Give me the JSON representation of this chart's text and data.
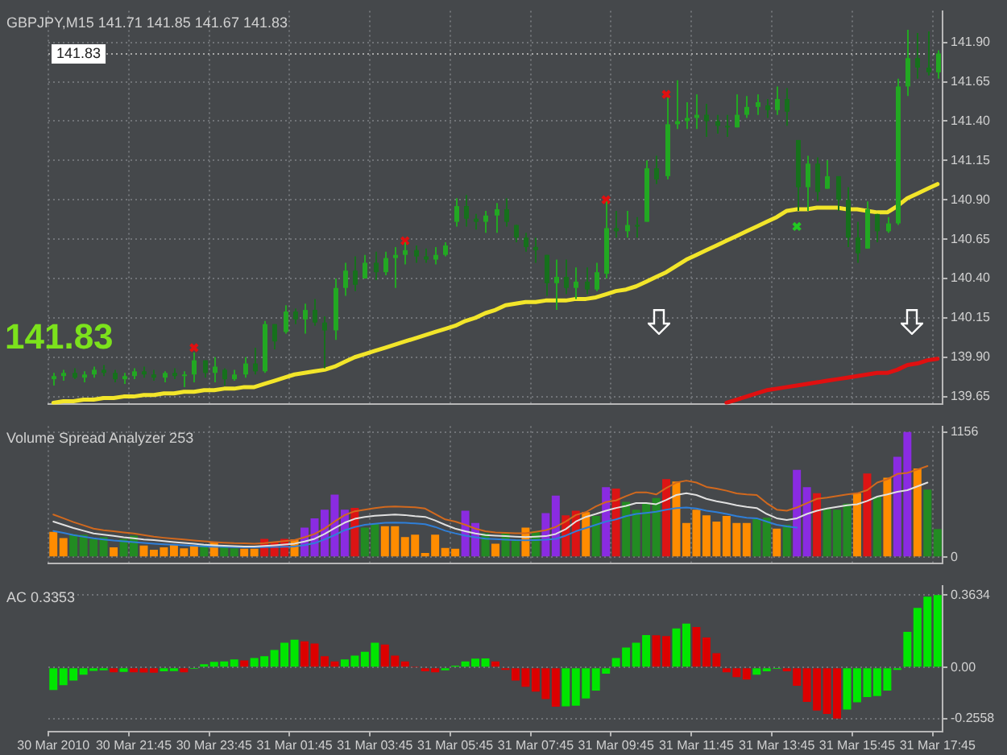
{
  "chart_data": [
    {
      "type": "candlestick",
      "title": "GBPJPY,M15 141.71 141.85 141.67 141.83",
      "annotations": [
        "141.83"
      ],
      "colors": [
        "#22a822",
        "#22a822",
        "#16701c",
        "#22a822",
        "#22a822",
        "#16701c",
        "#16701c",
        "#22a822",
        "#22a822",
        "#16701c",
        "#16701c",
        "#22a822",
        "#16701c",
        "#22a822",
        "#22a822",
        "#16701c",
        "#22a822",
        "#16701c",
        "#22a822",
        "#22a822",
        "#16701c",
        "#22a822",
        "#16701c",
        "#22a822",
        "#16701c",
        "#22a822",
        "#16701c",
        "#16701c",
        "#22a822",
        "#22a822",
        "#16701c",
        "#22a822",
        "#16701c",
        "#22a822",
        "#22a822",
        "#22a822",
        "#16701c",
        "#16701c",
        "#22a822",
        "#22a822",
        "#22a822",
        "#16701c",
        "#16701c",
        "#22a822",
        "#22a822",
        "#16701c",
        "#16701c",
        "#16701c",
        "#16701c",
        "#16701c",
        "#22a822",
        "#16701c",
        "#22a822",
        "#16701c",
        "#22a822",
        "#22a822",
        "#16701c",
        "#22a822",
        "#16701c",
        "#22a822",
        "#16701c",
        "#22a822",
        "#22a822",
        "#22a822",
        "#22a822",
        "#16701c",
        "#16701c",
        "#16701c",
        "#22a822",
        "#22a822",
        "#22a822",
        "#16701c",
        "#22a822",
        "#16701c",
        "#16701c",
        "#22a822",
        "#16701c",
        "#22a822",
        "#16701c",
        "#16701c",
        "#16701c",
        "#22a822",
        "#16701c",
        "#22a822",
        "#22a822",
        "#22a822",
        "#16701c",
        "#16701c",
        "#22a822"
      ],
      "ohlc": [
        [
          139.76,
          139.8,
          139.72,
          139.78
        ],
        [
          139.78,
          139.82,
          139.75,
          139.8
        ],
        [
          139.8,
          139.83,
          139.76,
          139.77
        ],
        [
          139.77,
          139.81,
          139.74,
          139.79
        ],
        [
          139.79,
          139.84,
          139.77,
          139.82
        ],
        [
          139.82,
          139.85,
          139.78,
          139.8
        ],
        [
          139.8,
          139.82,
          139.74,
          139.76
        ],
        [
          139.76,
          139.8,
          139.73,
          139.78
        ],
        [
          139.78,
          139.83,
          139.76,
          139.81
        ],
        [
          139.81,
          139.84,
          139.77,
          139.79
        ],
        [
          139.79,
          139.82,
          139.75,
          139.77
        ],
        [
          139.77,
          139.81,
          139.74,
          139.8
        ],
        [
          139.8,
          139.83,
          139.76,
          139.78
        ],
        [
          139.78,
          139.81,
          139.71,
          139.79
        ],
        [
          139.79,
          139.93,
          139.74,
          139.88
        ],
        [
          139.88,
          139.88,
          139.77,
          139.8
        ],
        [
          139.8,
          139.9,
          139.74,
          139.84
        ],
        [
          139.82,
          139.83,
          139.72,
          139.76
        ],
        [
          139.76,
          139.82,
          139.75,
          139.79
        ],
        [
          139.79,
          139.9,
          139.77,
          139.86
        ],
        [
          139.86,
          139.96,
          139.79,
          139.81
        ],
        [
          139.81,
          140.13,
          139.8,
          140.11
        ],
        [
          140.11,
          140.11,
          139.95,
          140.0
        ],
        [
          140.06,
          140.23,
          140.05,
          140.19
        ],
        [
          140.19,
          140.21,
          140.11,
          140.14
        ],
        [
          140.14,
          140.24,
          140.05,
          140.2
        ],
        [
          140.2,
          140.27,
          140.1,
          140.12
        ],
        [
          140.12,
          140.16,
          139.83,
          140.07
        ],
        [
          140.07,
          140.4,
          140.01,
          140.34
        ],
        [
          140.34,
          140.5,
          140.29,
          140.45
        ],
        [
          140.45,
          140.54,
          140.32,
          140.36
        ],
        [
          140.4,
          140.55,
          140.4,
          140.5
        ],
        [
          140.5,
          140.57,
          140.39,
          140.44
        ],
        [
          140.44,
          140.57,
          140.42,
          140.53
        ],
        [
          140.53,
          140.6,
          140.34,
          140.55
        ],
        [
          140.55,
          140.63,
          140.49,
          140.58
        ],
        [
          140.58,
          140.61,
          140.5,
          140.54
        ],
        [
          140.54,
          140.59,
          140.5,
          140.52
        ],
        [
          140.52,
          140.6,
          140.49,
          140.55
        ],
        [
          140.55,
          140.63,
          140.54,
          140.61
        ],
        [
          140.76,
          140.91,
          140.73,
          140.86
        ],
        [
          140.86,
          140.93,
          140.73,
          140.78
        ],
        [
          140.78,
          140.81,
          140.71,
          140.76
        ],
        [
          140.76,
          140.83,
          140.69,
          140.8
        ],
        [
          140.8,
          140.88,
          140.69,
          140.84
        ],
        [
          140.84,
          140.91,
          140.73,
          140.76
        ],
        [
          140.74,
          140.74,
          140.63,
          140.66
        ],
        [
          140.66,
          140.69,
          140.57,
          140.6
        ],
        [
          140.6,
          140.66,
          140.5,
          140.58
        ],
        [
          140.55,
          140.55,
          140.29,
          140.37
        ],
        [
          140.37,
          140.52,
          140.2,
          140.41
        ],
        [
          140.41,
          140.52,
          140.3,
          140.34
        ],
        [
          140.34,
          140.47,
          140.27,
          140.38
        ],
        [
          140.38,
          140.47,
          140.3,
          140.33
        ],
        [
          140.33,
          140.5,
          140.32,
          140.44
        ],
        [
          140.43,
          140.89,
          140.4,
          140.72
        ],
        [
          140.72,
          140.83,
          140.66,
          140.7
        ],
        [
          140.7,
          140.83,
          140.66,
          140.74
        ],
        [
          140.74,
          140.79,
          140.66,
          140.73
        ],
        [
          140.76,
          141.15,
          140.76,
          141.1
        ],
        [
          141.1,
          141.18,
          141.0,
          141.03
        ],
        [
          141.05,
          141.55,
          141.03,
          141.38
        ],
        [
          141.38,
          141.66,
          141.35,
          141.4
        ],
        [
          141.4,
          141.52,
          141.35,
          141.42
        ],
        [
          141.42,
          141.57,
          141.35,
          141.44
        ],
        [
          141.44,
          141.51,
          141.3,
          141.4
        ],
        [
          141.4,
          141.44,
          141.32,
          141.37
        ],
        [
          141.37,
          141.44,
          141.3,
          141.36
        ],
        [
          141.36,
          141.57,
          141.36,
          141.44
        ],
        [
          141.44,
          141.56,
          141.42,
          141.49
        ],
        [
          141.49,
          141.57,
          141.44,
          141.52
        ],
        [
          141.5,
          141.54,
          141.42,
          141.47
        ],
        [
          141.47,
          141.62,
          141.44,
          141.54
        ],
        [
          141.54,
          141.61,
          141.37,
          141.46
        ],
        [
          141.28,
          141.28,
          140.83,
          140.98
        ],
        [
          140.98,
          141.18,
          140.83,
          141.13
        ],
        [
          141.13,
          141.17,
          140.89,
          140.95
        ],
        [
          140.97,
          141.15,
          140.97,
          141.05
        ],
        [
          141.05,
          141.05,
          140.83,
          140.9
        ],
        [
          140.9,
          140.98,
          140.6,
          140.66
        ],
        [
          140.66,
          140.76,
          140.5,
          140.56
        ],
        [
          140.59,
          140.89,
          140.59,
          140.84
        ],
        [
          140.81,
          140.81,
          140.63,
          140.7
        ],
        [
          140.7,
          140.79,
          140.69,
          140.75
        ],
        [
          140.75,
          141.67,
          140.74,
          141.62
        ],
        [
          141.62,
          141.98,
          141.56,
          141.8
        ],
        [
          141.8,
          141.96,
          141.67,
          141.74
        ],
        [
          141.74,
          141.97,
          141.69,
          141.71
        ],
        [
          141.71,
          141.85,
          141.67,
          141.83
        ]
      ],
      "series": [
        {
          "type": "line",
          "color": "#f2e52a",
          "values": [
            139.61,
            139.62,
            139.62,
            139.63,
            139.63,
            139.64,
            139.64,
            139.65,
            139.65,
            139.66,
            139.66,
            139.67,
            139.67,
            139.68,
            139.68,
            139.69,
            139.69,
            139.7,
            139.7,
            139.71,
            139.71,
            139.73,
            139.75,
            139.77,
            139.79,
            139.8,
            139.81,
            139.82,
            139.84,
            139.87,
            139.9,
            139.92,
            139.94,
            139.96,
            139.98,
            140.0,
            140.02,
            140.04,
            140.06,
            140.08,
            140.1,
            140.13,
            140.15,
            140.18,
            140.2,
            140.23,
            140.24,
            140.25,
            140.25,
            140.26,
            140.26,
            140.26,
            140.27,
            140.27,
            140.28,
            140.3,
            140.32,
            140.33,
            140.35,
            140.38,
            140.41,
            140.44,
            140.48,
            140.52,
            140.55,
            140.58,
            140.61,
            140.64,
            140.67,
            140.7,
            140.73,
            140.76,
            140.79,
            140.83,
            140.84,
            140.84,
            140.85,
            140.85,
            140.85,
            140.84,
            140.84,
            140.83,
            140.82,
            140.82,
            140.86,
            140.91,
            140.94,
            140.97,
            141.0
          ]
        },
        {
          "type": "line",
          "color": "#e01010",
          "values": [
            null,
            null,
            null,
            null,
            null,
            null,
            null,
            null,
            null,
            null,
            null,
            null,
            null,
            null,
            null,
            null,
            null,
            null,
            null,
            null,
            null,
            null,
            null,
            null,
            null,
            null,
            null,
            null,
            null,
            null,
            null,
            null,
            null,
            null,
            null,
            null,
            null,
            null,
            null,
            null,
            null,
            null,
            null,
            null,
            null,
            null,
            null,
            null,
            null,
            null,
            null,
            null,
            null,
            null,
            null,
            null,
            null,
            null,
            null,
            null,
            null,
            null,
            null,
            null,
            null,
            null,
            null,
            139.61,
            139.63,
            139.65,
            139.67,
            139.69,
            139.7,
            139.71,
            139.72,
            139.73,
            139.74,
            139.75,
            139.76,
            139.77,
            139.78,
            139.79,
            139.8,
            139.8,
            139.82,
            139.85,
            139.86,
            139.88,
            139.89
          ]
        },
        {
          "type": "scatter",
          "color": "#e01010",
          "marker": "cross",
          "values": [
            null,
            null,
            null,
            null,
            null,
            null,
            null,
            null,
            null,
            null,
            null,
            null,
            null,
            null,
            139.96,
            null,
            null,
            null,
            null,
            null,
            null,
            null,
            null,
            null,
            null,
            null,
            null,
            null,
            null,
            null,
            null,
            null,
            null,
            null,
            null,
            140.64,
            null,
            null,
            null,
            null,
            null,
            null,
            null,
            null,
            null,
            null,
            null,
            null,
            null,
            null,
            null,
            null,
            null,
            null,
            null,
            140.9,
            null,
            null,
            null,
            null,
            null,
            141.57,
            null,
            null,
            null,
            null,
            null,
            null,
            null,
            null,
            null,
            null,
            null,
            null,
            null,
            null,
            null,
            null,
            null,
            null,
            null,
            null,
            null,
            null,
            null,
            null,
            null,
            null,
            null
          ]
        },
        {
          "type": "scatter",
          "color": "#22c822",
          "marker": "cross",
          "values": [
            null,
            null,
            null,
            null,
            null,
            null,
            null,
            null,
            null,
            null,
            null,
            null,
            null,
            null,
            null,
            null,
            null,
            null,
            null,
            null,
            null,
            null,
            null,
            null,
            null,
            null,
            null,
            null,
            null,
            null,
            null,
            null,
            null,
            null,
            null,
            null,
            null,
            null,
            null,
            null,
            null,
            null,
            null,
            null,
            null,
            null,
            null,
            null,
            null,
            null,
            null,
            null,
            null,
            null,
            null,
            null,
            null,
            null,
            null,
            null,
            null,
            null,
            null,
            null,
            null,
            null,
            null,
            null,
            null,
            null,
            null,
            null,
            null,
            null,
            140.73,
            null,
            null,
            null,
            null,
            null,
            null,
            null,
            null,
            null,
            null,
            null,
            null,
            null,
            null
          ]
        }
      ],
      "ylim": [
        139.6,
        142.1
      ],
      "yticks": [
        139.65,
        {
          "value": 139.9,
          "label": "139.90"
        },
        140.15,
        {
          "value": 140.4,
          "label": "140.40"
        },
        140.65,
        {
          "value": 140.9,
          "label": "140.90"
        },
        141.15,
        {
          "value": 141.4,
          "label": "141.40"
        },
        141.65,
        {
          "value": 141.9,
          "label": "141.90"
        }
      ],
      "ref_lines": [
        {
          "axis": "y",
          "value": 141.83,
          "label": "141.83"
        }
      ],
      "grid": true,
      "tick_labels": "y"
    },
    {
      "type": "bar",
      "title": "Volume Spread Analyzer 253",
      "series": [
        {
          "type": "bar",
          "values": [
            235,
            178,
            213,
            208,
            169,
            187,
            91,
            169,
            200,
            109,
            69,
            91,
            117,
            83,
            109,
            122,
            143,
            113,
            83,
            78,
            78,
            169,
            143,
            169,
            165,
            274,
            360,
            439,
            578,
            439,
            456,
            274,
            308,
            287,
            287,
            187,
            208,
            39,
            208,
            87,
            78,
            430,
            317,
            221,
            126,
            221,
            165,
            274,
            243,
            408,
            569,
            387,
            430,
            417,
            382,
            647,
            634,
            512,
            439,
            504,
            547,
            721,
            699,
            317,
            439,
            387,
            330,
            382,
            317,
            317,
            352,
            365,
            265,
            300,
            808,
            647,
            591,
            447,
            439,
            495,
            591,
            773,
            560,
            734,
            929,
            1156,
            821,
            625,
            261
          ],
          "colors": [
            "#ff8c00",
            "#ff8c00",
            "#228b22",
            "#228b22",
            "#228b22",
            "#228b22",
            "#ff8c00",
            "#228b22",
            "#228b22",
            "#ff8c00",
            "#ff8c00",
            "#ff8c00",
            "#ff8c00",
            "#ff8c00",
            "#ff8c00",
            "#228b22",
            "#ff8c00",
            "#228b22",
            "#228b22",
            "#ff8c00",
            "#ff8c00",
            "#dc1414",
            "#dc1414",
            "#dc1414",
            "#ff8c00",
            "#8a2be2",
            "#8a2be2",
            "#8a2be2",
            "#8a2be2",
            "#8a2be2",
            "#dc1414",
            "#228b22",
            "#228b22",
            "#ff8c00",
            "#ff8c00",
            "#ff8c00",
            "#ff8c00",
            "#ff8c00",
            "#ff8c00",
            "#ff8c00",
            "#ff8c00",
            "#8a2be2",
            "#8a2be2",
            "#228b22",
            "#ff8c00",
            "#228b22",
            "#228b22",
            "#ff8c00",
            "#228b22",
            "#8a2be2",
            "#8a2be2",
            "#dc1414",
            "#dc1414",
            "#ff8c00",
            "#228b22",
            "#8a2be2",
            "#dc1414",
            "#228b22",
            "#228b22",
            "#228b22",
            "#228b22",
            "#dc1414",
            "#ff8c00",
            "#ff8c00",
            "#ff8c00",
            "#ff8c00",
            "#ff8c00",
            "#ff8c00",
            "#ff8c00",
            "#ff8c00",
            "#228b22",
            "#228b22",
            "#ff8c00",
            "#228b22",
            "#8a2be2",
            "#8a2be2",
            "#dc1414",
            "#228b22",
            "#228b22",
            "#228b22",
            "#ff8c00",
            "#dc1414",
            "#228b22",
            "#ff8c00",
            "#8a2be2",
            "#8a2be2",
            "#ff8c00",
            "#228b22",
            "#228b22"
          ]
        },
        {
          "type": "line",
          "color": "#d2691e",
          "values": [
            395,
            360,
            325,
            295,
            265,
            250,
            240,
            230,
            220,
            205,
            190,
            180,
            172,
            165,
            155,
            147,
            140,
            135,
            130,
            128,
            126,
            130,
            140,
            150,
            158,
            185,
            215,
            265,
            330,
            390,
            425,
            440,
            455,
            465,
            469,
            466,
            462,
            450,
            400,
            350,
            330,
            300,
            265,
            240,
            230,
            225,
            222,
            221,
            235,
            250,
            280,
            330,
            390,
            417,
            470,
            510,
            525,
            565,
            600,
            600,
            580,
            640,
            690,
            708,
            690,
            650,
            634,
            615,
            590,
            580,
            575,
            500,
            440,
            430,
            460,
            500,
            540,
            550,
            565,
            580,
            591,
            620,
            690,
            720,
            770,
            780,
            810,
            843,
            null
          ]
        },
        {
          "type": "line",
          "color": "#e0e0e0",
          "values": [
            330,
            300,
            270,
            245,
            220,
            208,
            198,
            185,
            175,
            165,
            158,
            150,
            140,
            132,
            125,
            116,
            110,
            106,
            102,
            100,
            100,
            104,
            110,
            118,
            126,
            145,
            170,
            215,
            270,
            320,
            355,
            373,
            383,
            390,
            395,
            390,
            380,
            373,
            340,
            300,
            265,
            240,
            220,
            205,
            200,
            195,
            190,
            187,
            190,
            195,
            215,
            260,
            330,
            373,
            400,
            430,
            455,
            475,
            500,
            500,
            490,
            530,
            575,
            591,
            575,
            540,
            517,
            500,
            480,
            465,
            455,
            400,
            360,
            345,
            360,
            400,
            430,
            450,
            465,
            480,
            490,
            520,
            560,
            580,
            605,
            620,
            655,
            690,
            null
          ]
        },
        {
          "type": "line",
          "color": "#2f7fd8",
          "values": [
            243,
            225,
            205,
            190,
            175,
            165,
            155,
            148,
            140,
            132,
            126,
            120,
            115,
            110,
            106,
            101,
            98,
            96,
            93,
            92,
            91,
            93,
            95,
            98,
            100,
            112,
            130,
            165,
            205,
            250,
            280,
            300,
            310,
            318,
            321,
            318,
            312,
            306,
            280,
            245,
            221,
            200,
            185,
            172,
            168,
            163,
            158,
            156,
            158,
            162,
            170,
            200,
            240,
            270,
            300,
            330,
            350,
            380,
            400,
            410,
            420,
            440,
            455,
            460,
            450,
            430,
            417,
            400,
            380,
            365,
            360,
            330,
            300,
            285,
            274,
            null,
            null,
            null,
            null,
            null,
            null,
            null,
            null,
            null,
            null,
            null,
            null,
            null,
            null
          ]
        }
      ],
      "ylim": [
        -60,
        1210
      ],
      "yticks": [
        0,
        1156
      ],
      "grid": true,
      "tick_labels": "y"
    },
    {
      "type": "bar",
      "title": "AC 0.3353",
      "categories": [
        "30 Mar 2010",
        null,
        null,
        null,
        null,
        null,
        null,
        null,
        "30 Mar 21:45",
        null,
        null,
        null,
        null,
        null,
        null,
        null,
        "30 Mar 23:45",
        null,
        null,
        null,
        null,
        null,
        null,
        null,
        "31 Mar 01:45",
        null,
        null,
        null,
        null,
        null,
        null,
        null,
        "31 Mar 03:45",
        null,
        null,
        null,
        null,
        null,
        null,
        null,
        "31 Mar 05:45",
        null,
        null,
        null,
        null,
        null,
        null,
        null,
        "31 Mar 07:45",
        null,
        null,
        null,
        null,
        null,
        null,
        null,
        "31 Mar 09:45",
        null,
        null,
        null,
        null,
        null,
        null,
        null,
        "31 Mar 11:45",
        null,
        null,
        null,
        null,
        null,
        null,
        null,
        "31 Mar 13:45",
        null,
        null,
        null,
        null,
        null,
        null,
        null,
        "31 Mar 15:45",
        null,
        null,
        null,
        null,
        null,
        null,
        null,
        "31 Mar 17:45"
      ],
      "values": [
        -0.112,
        -0.088,
        -0.065,
        -0.036,
        -0.017,
        -0.014,
        -0.024,
        -0.022,
        -0.024,
        -0.025,
        -0.026,
        -0.019,
        -0.018,
        -0.024,
        -0.007,
        0.017,
        0.029,
        0.031,
        0.041,
        0.036,
        0.048,
        0.057,
        0.088,
        0.124,
        0.139,
        0.131,
        0.12,
        0.057,
        0.031,
        0.041,
        0.06,
        0.079,
        0.124,
        0.115,
        0.06,
        0.031,
        0.002,
        -0.019,
        -0.024,
        -0.014,
        0.01,
        0.031,
        0.045,
        0.046,
        0.031,
        -0.012,
        -0.065,
        -0.096,
        -0.12,
        -0.158,
        -0.196,
        -0.194,
        -0.191,
        -0.155,
        -0.115,
        -0.031,
        0.048,
        0.1,
        0.124,
        0.163,
        0.162,
        0.158,
        0.196,
        0.22,
        0.203,
        0.151,
        0.072,
        -0.024,
        -0.048,
        -0.06,
        -0.036,
        -0.019,
        -0.007,
        -0.019,
        -0.091,
        -0.172,
        -0.215,
        -0.232,
        -0.255,
        -0.21,
        -0.174,
        -0.148,
        -0.143,
        -0.115,
        -0.012,
        0.179,
        0.299,
        0.355,
        0.3634
      ],
      "colors": [
        "#00e600",
        "#00e600",
        "#00e600",
        "#00e600",
        "#00e600",
        "#00e600",
        "#dc0000",
        "#00e600",
        "#dc0000",
        "#dc0000",
        "#dc0000",
        "#00e600",
        "#00e600",
        "#dc0000",
        "#00e600",
        "#00e600",
        "#00e600",
        "#00e600",
        "#00e600",
        "#dc0000",
        "#00e600",
        "#00e600",
        "#00e600",
        "#00e600",
        "#00e600",
        "#dc0000",
        "#dc0000",
        "#dc0000",
        "#dc0000",
        "#00e600",
        "#00e600",
        "#00e600",
        "#00e600",
        "#dc0000",
        "#dc0000",
        "#dc0000",
        "#dc0000",
        "#dc0000",
        "#dc0000",
        "#00e600",
        "#00e600",
        "#00e600",
        "#00e600",
        "#00e600",
        "#dc0000",
        "#dc0000",
        "#dc0000",
        "#dc0000",
        "#dc0000",
        "#dc0000",
        "#dc0000",
        "#00e600",
        "#00e600",
        "#00e600",
        "#00e600",
        "#00e600",
        "#00e600",
        "#00e600",
        "#00e600",
        "#00e600",
        "#dc0000",
        "#dc0000",
        "#00e600",
        "#00e600",
        "#dc0000",
        "#dc0000",
        "#dc0000",
        "#dc0000",
        "#dc0000",
        "#dc0000",
        "#00e600",
        "#00e600",
        "#00e600",
        "#dc0000",
        "#dc0000",
        "#dc0000",
        "#dc0000",
        "#dc0000",
        "#dc0000",
        "#00e600",
        "#00e600",
        "#00e600",
        "#00e600",
        "#00e600",
        "#00e600",
        "#00e600",
        "#00e600",
        "#00e600",
        "#00e600"
      ],
      "ylim": [
        -0.32,
        0.41
      ],
      "yticks": [
        -0.2558,
        {
          "value": 0,
          "label": "0.00"
        },
        0.3634
      ],
      "grid": "y"
    }
  ]
}
